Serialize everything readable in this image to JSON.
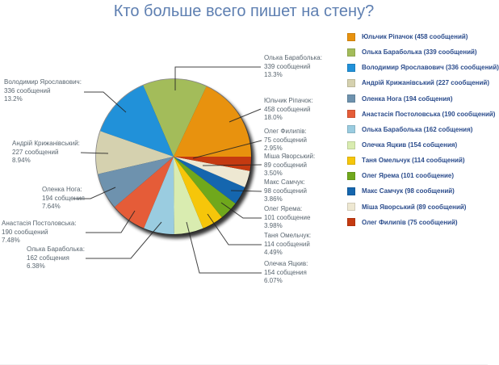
{
  "title": "Кто больше всего пишет на стену?",
  "colors": {
    "title_text": "#5E7FB1",
    "legend_text": "#2B4C8C",
    "callout_text": "#5A6670",
    "callout_line": "#222222",
    "background": "#FFFFFF"
  },
  "chart_data": {
    "type": "pie",
    "title": "Кто больше всего пишет на стену?",
    "legend_position": "right",
    "label_format": "name: / count / percent",
    "direction": "counterclockwise from 3 o'clock, descending by value",
    "slices": [
      {
        "name": "Юльчик Ріпачок",
        "value": 458,
        "pct": "18.0%",
        "label_name": "Юльчик Ріпачок:",
        "count_label": "458 сообщений",
        "legend_label": "Юльчик Ріпачок (458 сообщений)",
        "color": "#E8920E"
      },
      {
        "name": "Олька Бараболька",
        "value": 339,
        "pct": "13.3%",
        "label_name": "Олька Бараболька:",
        "count_label": "339 сообщений",
        "legend_label": "Олька Бараболька (339 сообщений)",
        "color": "#A3BC5A"
      },
      {
        "name": "Володимир Ярославович",
        "value": 336,
        "pct": "13.2%",
        "label_name": "Володимир Ярославович:",
        "count_label": "336 сообщений",
        "legend_label": "Володимир Ярославович (336 сообщений)",
        "color": "#2191D9"
      },
      {
        "name": "Андрій Крижанівський",
        "value": 227,
        "pct": "8.94%",
        "label_name": "Андрій Крижанівський:",
        "count_label": "227 сообщений",
        "legend_label": "Андрій Крижанівський (227 сообщений)",
        "color": "#D5D1AF"
      },
      {
        "name": "Оленка Нога",
        "value": 194,
        "pct": "7.64%",
        "label_name": "Оленка Нога:",
        "count_label": "194 собщения",
        "legend_label": "Оленка Нога (194 собщения)",
        "color": "#6E92AE"
      },
      {
        "name": "Анастасія Постоловська",
        "value": 190,
        "pct": "7.48%",
        "label_name": "Анастасія Постоловська:",
        "count_label": "190 сообщений",
        "legend_label": "Анастасія Постоловська (190 сообщений)",
        "color": "#E55C38"
      },
      {
        "name": "Олька Бараболька",
        "value": 162,
        "pct": "6.38%",
        "label_name": "Олька Бараболька:",
        "count_label": "162 собщения",
        "legend_label": "Олька Бараболька (162 собщения)",
        "color": "#9ACCE0"
      },
      {
        "name": "Олечка Яцкив",
        "value": 154,
        "pct": "6.07%",
        "label_name": "Олечка Яцкив:",
        "count_label": "154 собщения",
        "legend_label": "Олечка Яцкив (154 собщения)",
        "color": "#D9ECB0"
      },
      {
        "name": "Таня Омельчук",
        "value": 114,
        "pct": "4.49%",
        "label_name": "Таня Омельчук:",
        "count_label": "114 сообщений",
        "legend_label": "Таня Омельчук (114 сообщений)",
        "color": "#F6C60A"
      },
      {
        "name": "Олег Ярема",
        "value": 101,
        "pct": "3.98%",
        "label_name": "Олег Ярема:",
        "count_label": "101 сообщение",
        "legend_label": "Олег Ярема (101 сообщение)",
        "color": "#70A81C"
      },
      {
        "name": "Макс Самчук",
        "value": 98,
        "pct": "3.86%",
        "label_name": "Макс Самчук:",
        "count_label": "98 сообщений",
        "legend_label": "Макс Самчук (98 сообщений)",
        "color": "#1566AE"
      },
      {
        "name": "Міша Яворський",
        "value": 89,
        "pct": "3.50%",
        "label_name": "Міша Яворський:",
        "count_label": "89 сообщений",
        "legend_label": "Міша Яворський (89 сообщений)",
        "color": "#EEE8D2"
      },
      {
        "name": "Олег Филипів",
        "value": 75,
        "pct": "2.95%",
        "label_name": "Олег Филипів:",
        "count_label": "75 сообщений",
        "legend_label": "Олег Филипів (75 сообщений)",
        "color": "#C53A10"
      }
    ]
  }
}
